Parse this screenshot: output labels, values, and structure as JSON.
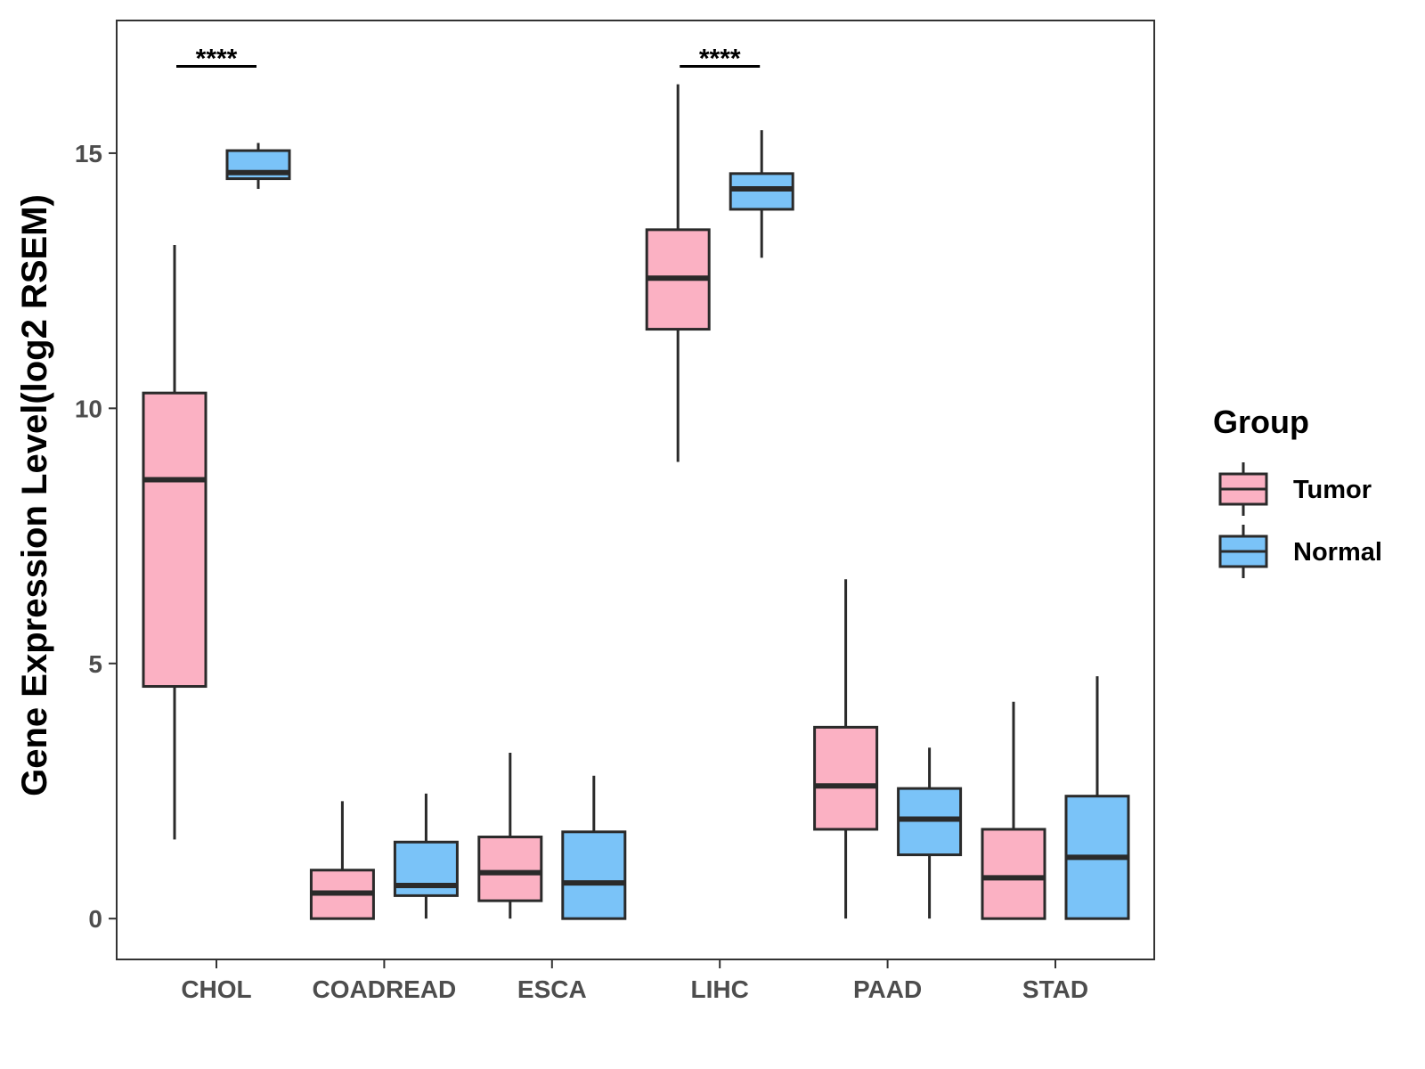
{
  "chart_data": {
    "type": "boxplot",
    "title": "",
    "xlabel": "",
    "ylabel": "Gene Expression Level(log2 RSEM)",
    "ylim": [
      -0.8,
      17.6
    ],
    "yticks": [
      0,
      5,
      10,
      15
    ],
    "grid": false,
    "legend": {
      "title": "Group",
      "placement": "right"
    },
    "categories": [
      "CHOL",
      "COADREAD",
      "ESCA",
      "LIHC",
      "PAAD",
      "STAD"
    ],
    "series": [
      {
        "name": "Tumor",
        "color": "#FBB1C3",
        "boxes": [
          {
            "min": 1.55,
            "q1": 4.55,
            "median": 8.6,
            "q3": 10.3,
            "max": 13.2
          },
          {
            "min": 0.0,
            "q1": 0.0,
            "median": 0.5,
            "q3": 0.95,
            "max": 2.3
          },
          {
            "min": 0.0,
            "q1": 0.35,
            "median": 0.9,
            "q3": 1.6,
            "max": 3.25
          },
          {
            "min": 8.95,
            "q1": 11.55,
            "median": 12.55,
            "q3": 13.5,
            "max": 16.35
          },
          {
            "min": 0.0,
            "q1": 1.75,
            "median": 2.6,
            "q3": 3.75,
            "max": 6.65
          },
          {
            "min": 0.0,
            "q1": 0.0,
            "median": 0.8,
            "q3": 1.75,
            "max": 4.25
          }
        ]
      },
      {
        "name": "Normal",
        "color": "#7AC3F8",
        "boxes": [
          {
            "min": 14.3,
            "q1": 14.5,
            "median": 14.62,
            "q3": 15.05,
            "max": 15.2
          },
          {
            "min": 0.0,
            "q1": 0.45,
            "median": 0.65,
            "q3": 1.5,
            "max": 2.45
          },
          {
            "min": 0.0,
            "q1": 0.0,
            "median": 0.7,
            "q3": 1.7,
            "max": 2.8
          },
          {
            "min": 12.95,
            "q1": 13.9,
            "median": 14.3,
            "q3": 14.6,
            "max": 15.45
          },
          {
            "min": 0.0,
            "q1": 1.25,
            "median": 1.95,
            "q3": 2.55,
            "max": 3.35
          },
          {
            "min": 0.0,
            "q1": 0.0,
            "median": 1.2,
            "q3": 2.4,
            "max": 4.75
          }
        ]
      }
    ],
    "annotations": [
      {
        "category": "CHOL",
        "label": "****",
        "y": 16.7
      },
      {
        "category": "LIHC",
        "label": "****",
        "y": 16.7
      }
    ]
  }
}
